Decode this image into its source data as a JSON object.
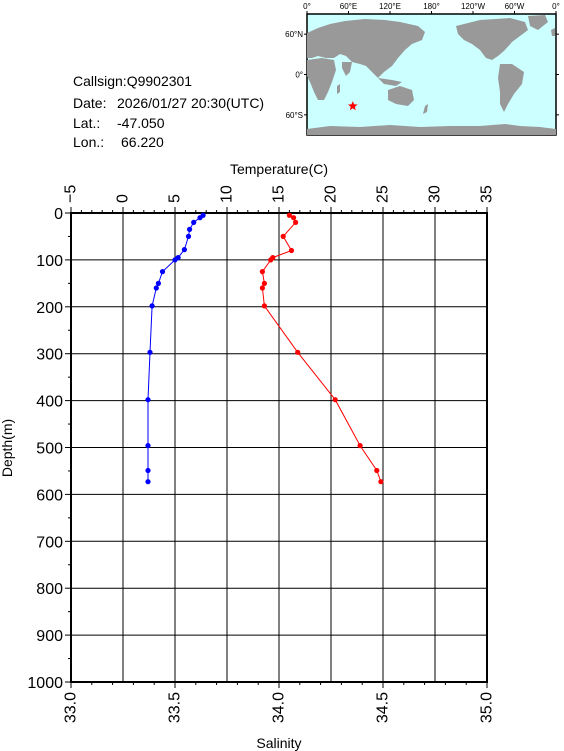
{
  "info": {
    "callsign_label": "Callsign:",
    "callsign": "Q9902301",
    "date_label": "Date:",
    "date": "2026/01/27 20:30(UTC)",
    "lat_label": "Lat.:",
    "lat": "-47.050",
    "lon_label": "Lon.:",
    "lon": "66.220"
  },
  "map": {
    "lon_labels": [
      "0°",
      "60°E",
      "120°E",
      "180°",
      "120°W",
      "60°W",
      "0°"
    ],
    "lat_labels": [
      "60°N",
      "0°",
      "60°S"
    ],
    "marker": {
      "lat": -47.05,
      "lon": 66.22
    },
    "ocean_color": "#ccffff",
    "land_color": "#999999",
    "marker_color": "#ff0000"
  },
  "chart_data": {
    "type": "line",
    "ylabel": "Depth(m)",
    "ylim": [
      0,
      1000
    ],
    "yticks": [
      "0",
      "100",
      "200",
      "300",
      "400",
      "500",
      "600",
      "700",
      "800",
      "900",
      "1000"
    ],
    "y_reversed": true,
    "grid": true,
    "top_axis": {
      "label": "Temperature(C)",
      "range": [
        -5,
        35
      ],
      "ticks": [
        "−5",
        "0",
        "5",
        "10",
        "15",
        "20",
        "25",
        "30",
        "35"
      ]
    },
    "bottom_axis": {
      "label": "Salinity",
      "range": [
        33.0,
        35.0
      ],
      "ticks": [
        "33.0",
        "33.5",
        "34.0",
        "34.5",
        "35.0"
      ]
    },
    "series": [
      {
        "axis": "top",
        "color": "#0000ff",
        "points": [
          [
            7.7,
            5
          ],
          [
            7.4,
            10
          ],
          [
            6.8,
            20
          ],
          [
            6.4,
            35
          ],
          [
            6.3,
            50
          ],
          [
            5.9,
            78
          ],
          [
            5.3,
            95
          ],
          [
            5.0,
            100
          ],
          [
            3.8,
            125
          ],
          [
            3.4,
            150
          ],
          [
            3.2,
            160
          ],
          [
            2.8,
            198
          ],
          [
            2.6,
            297
          ],
          [
            2.4,
            398
          ],
          [
            2.4,
            496
          ],
          [
            2.4,
            549
          ],
          [
            2.4,
            573
          ]
        ]
      },
      {
        "axis": "bottom",
        "color": "#ff0000",
        "points": [
          [
            34.05,
            5
          ],
          [
            34.07,
            10
          ],
          [
            34.08,
            20
          ],
          [
            34.02,
            50
          ],
          [
            34.06,
            80
          ],
          [
            33.97,
            95
          ],
          [
            33.96,
            100
          ],
          [
            33.92,
            125
          ],
          [
            33.93,
            150
          ],
          [
            33.92,
            160
          ],
          [
            33.93,
            198
          ],
          [
            34.09,
            297
          ],
          [
            34.27,
            398
          ],
          [
            34.39,
            496
          ],
          [
            34.47,
            549
          ],
          [
            34.49,
            573
          ]
        ]
      }
    ]
  }
}
